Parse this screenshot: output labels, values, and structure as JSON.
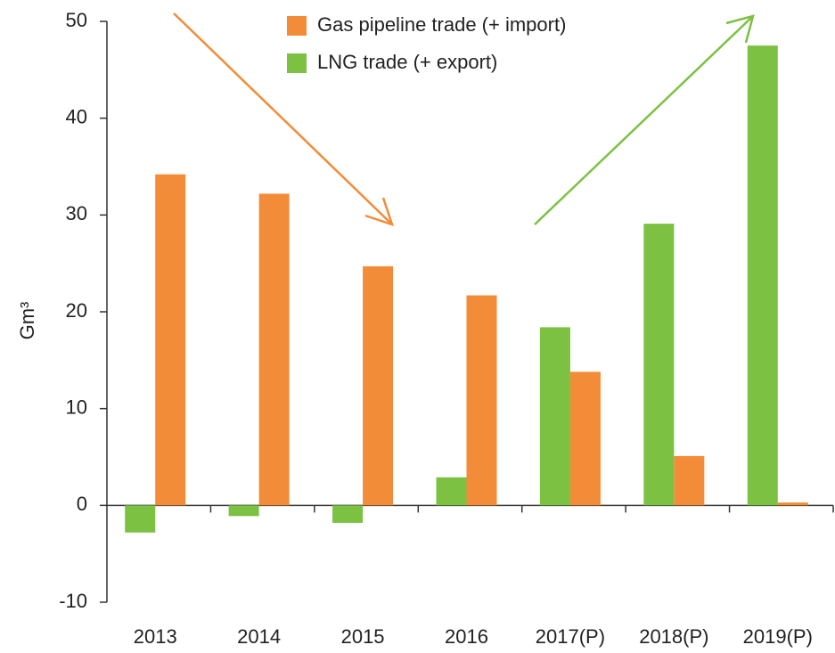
{
  "chart_data": {
    "type": "bar",
    "y_label": "Gm³",
    "categories": [
      "2013",
      "2014",
      "2015",
      "2016",
      "2017(P)",
      "2018(P)",
      "2019(P)"
    ],
    "series": [
      {
        "name": "LNG trade (+ export)",
        "color": "#7cc142",
        "values": [
          -2.8,
          -1.1,
          -1.8,
          2.9,
          18.4,
          29.1,
          47.5
        ]
      },
      {
        "name": "Gas pipeline trade (+ import)",
        "color": "#f28c38",
        "values": [
          34.2,
          32.2,
          24.7,
          21.7,
          13.8,
          5.1,
          0.3
        ]
      }
    ],
    "ylim": [
      -10,
      50
    ],
    "yticks": [
      -10,
      0,
      10,
      20,
      30,
      40,
      50
    ],
    "grid": false
  }
}
